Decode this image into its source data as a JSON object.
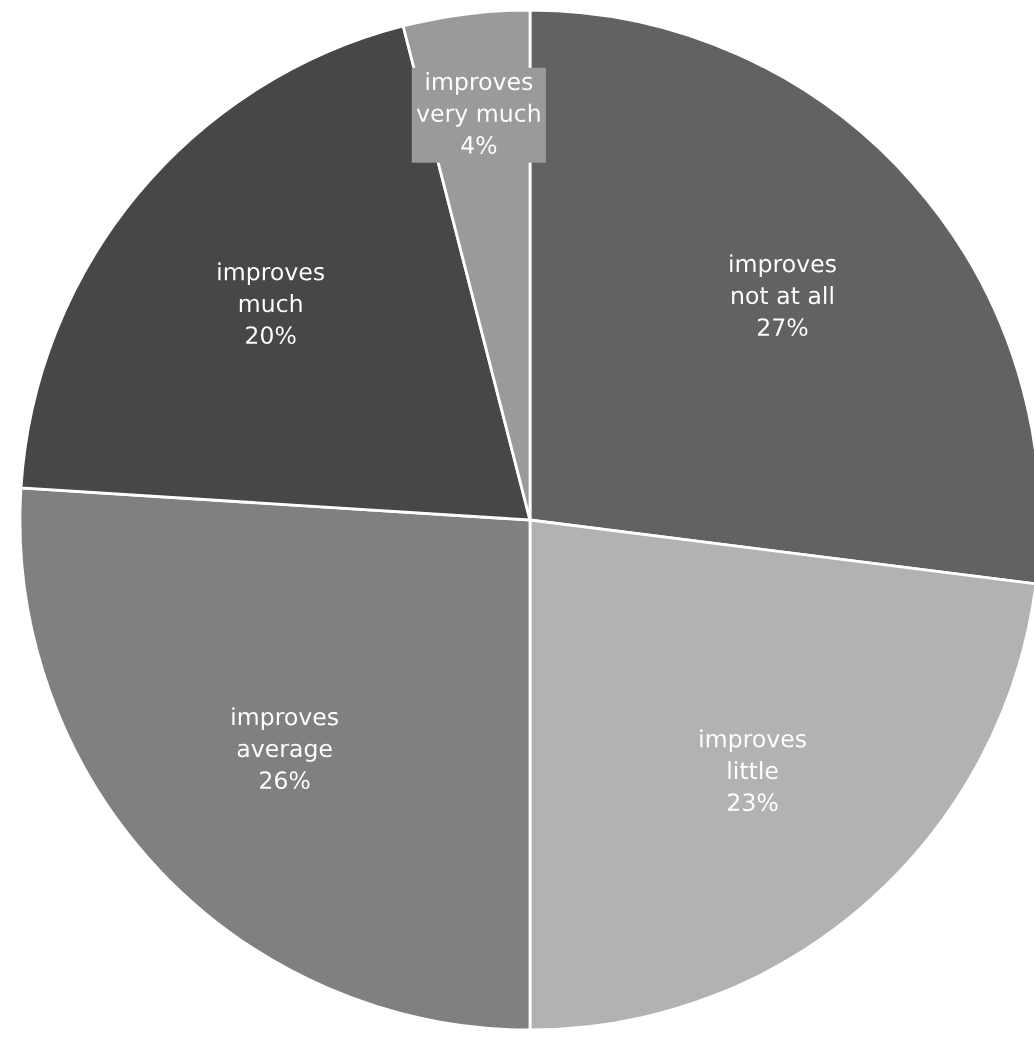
{
  "chart_data": {
    "type": "pie",
    "categories": [
      "improves\nnot at all",
      "improves\nlittle",
      "improves\naverage",
      "improves\nmuch",
      "improves\nvery much"
    ],
    "values": [
      27,
      23,
      26,
      20,
      4
    ],
    "value_labels": [
      "27%",
      "23%",
      "26%",
      "20%",
      "4%"
    ],
    "colors": [
      "#626262",
      "#b2b2b2",
      "#808080",
      "#474747",
      "#9a9a9a"
    ],
    "legend": false
  }
}
